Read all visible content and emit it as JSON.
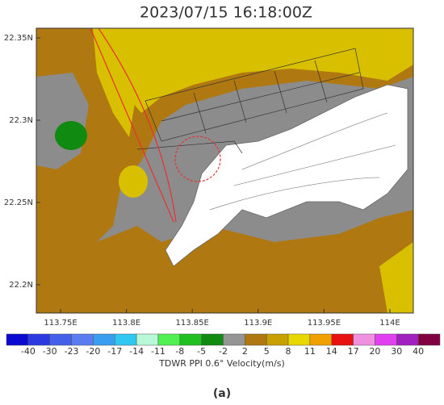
{
  "title": "2023/07/15 16:18:00Z",
  "map": {
    "xlim": [
      113.7316,
      114.0178
    ],
    "ylim": [
      22.1828,
      22.3559
    ],
    "xticks": [
      {
        "value": 113.75,
        "label": "113.75E"
      },
      {
        "value": 113.8,
        "label": "113.8E"
      },
      {
        "value": 113.85,
        "label": "113.85E"
      },
      {
        "value": 113.9,
        "label": "113.9E"
      },
      {
        "value": 113.95,
        "label": "113.95E"
      },
      {
        "value": 114,
        "label": "114E"
      }
    ],
    "yticks": [
      {
        "value": 22.2,
        "label": "22.2N"
      },
      {
        "value": 22.25,
        "label": "22.25N"
      },
      {
        "value": 22.3,
        "label": "22.3N"
      },
      {
        "value": 22.35,
        "label": "22.35N"
      }
    ]
  },
  "colorbar": {
    "colors": [
      "#0a0ad0",
      "#2a3ae0",
      "#4460e8",
      "#5a7cf0",
      "#3a9ef0",
      "#30c8f0",
      "#b8f8d8",
      "#50f050",
      "#20c020",
      "#108a10",
      "#959595",
      "#b07810",
      "#c8a000",
      "#e8d800",
      "#f0a000",
      "#e81010",
      "#f090e0",
      "#e040f0",
      "#a020c0",
      "#800040"
    ],
    "labels": [
      -40,
      -30,
      -23,
      -20,
      -17,
      -14,
      -11,
      -8,
      -5,
      -2,
      2,
      5,
      8,
      11,
      14,
      17,
      20,
      30,
      40
    ],
    "title": "TDWR PPI 0.6° Velocity(m/s)"
  },
  "caption": "(a)"
}
